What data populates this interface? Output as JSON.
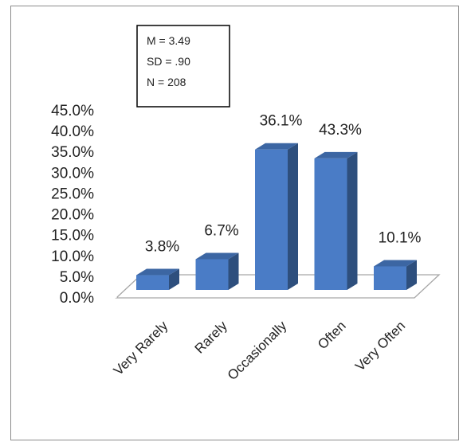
{
  "chart_data": {
    "type": "bar",
    "categories": [
      "Very Rarely",
      "Rarely",
      "Occasionally",
      "Often",
      "Very Often"
    ],
    "values": [
      3.8,
      6.7,
      36.1,
      43.3,
      10.1
    ],
    "value_labels": [
      "3.8%",
      "6.7%",
      "36.1%",
      "43.3%",
      "10.1%"
    ],
    "ylim": [
      0,
      45
    ],
    "yticks": [
      "0.0%",
      "5.0%",
      "10.0%",
      "15.0%",
      "20.0%",
      "25.0%",
      "30.0%",
      "35.0%",
      "40.0%",
      "45.0%"
    ],
    "grid": false,
    "style": "3d-column",
    "stats_box": [
      "M = 3.49",
      "SD = .90",
      "N = 208"
    ],
    "colors": {
      "bar_front": "#4a7cc6",
      "bar_side": "#2e4f7d",
      "bar_top": "#3c66a3"
    }
  }
}
